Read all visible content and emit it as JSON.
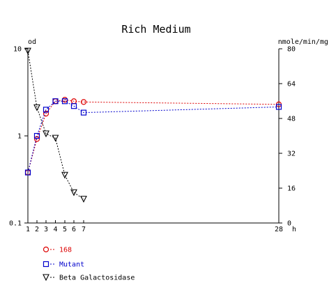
{
  "chart_data": {
    "type": "scatter",
    "title": "Rich Medium",
    "left_axis": {
      "label": "od",
      "scale": "log",
      "range": [
        0.1,
        10
      ],
      "ticks": [
        0.1,
        1,
        10
      ],
      "tick_labels": [
        "0.1",
        "1",
        "10"
      ]
    },
    "right_axis": {
      "label": "nmole/min/mg",
      "scale": "linear",
      "range": [
        0,
        80
      ],
      "ticks": [
        0,
        16,
        32,
        48,
        64,
        80
      ],
      "tick_labels": [
        "0",
        "16",
        "32",
        "48",
        "64",
        "80"
      ]
    },
    "x_axis": {
      "label": "h",
      "ticks": [
        1,
        2,
        3,
        4,
        5,
        6,
        7,
        28
      ],
      "tick_labels": [
        "1",
        "2",
        "3",
        "4",
        "5",
        "6",
        "7",
        "28"
      ],
      "axis_break": true
    },
    "series": [
      {
        "name": "168",
        "marker": "circle",
        "color": "#dd0000",
        "axis": "left",
        "x": [
          1,
          2,
          3,
          4,
          5,
          6,
          7,
          28
        ],
        "y": [
          0.38,
          0.92,
          1.8,
          2.5,
          2.6,
          2.5,
          2.45,
          2.3
        ]
      },
      {
        "name": "Mutant",
        "marker": "square",
        "color": "#0000cc",
        "axis": "left",
        "x": [
          1,
          2,
          3,
          4,
          5,
          6,
          7,
          28
        ],
        "y": [
          0.38,
          1.0,
          2.0,
          2.5,
          2.5,
          2.2,
          1.85,
          2.15
        ]
      },
      {
        "name": "Beta Galactosidase",
        "marker": "triangle-down",
        "color": "#000000",
        "axis": "right",
        "x": [
          1,
          2,
          3,
          4,
          5,
          6,
          7
        ],
        "y": [
          79,
          53,
          41,
          39,
          22,
          14,
          11
        ]
      }
    ],
    "legend_position": "bottom-left",
    "grid": false
  }
}
